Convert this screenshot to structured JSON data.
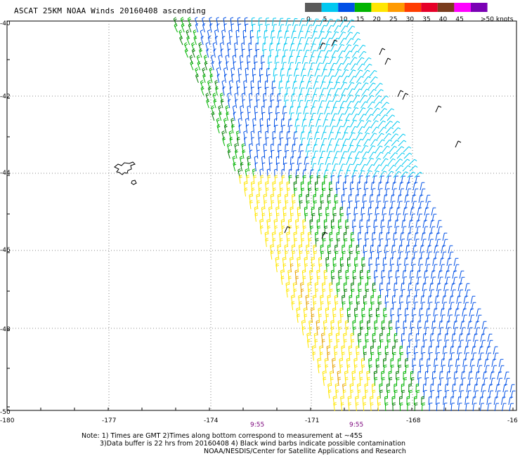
{
  "title": "ASCAT 25KM NOAA Winds 20160408 ascending",
  "legend": {
    "unit_label": ">50 knots",
    "bins": [
      {
        "label": "0",
        "color": "#5a5a5a"
      },
      {
        "label": "5",
        "color": "#00c8f0"
      },
      {
        "label": "10",
        "color": "#0050e6"
      },
      {
        "label": "15",
        "color": "#00b400"
      },
      {
        "label": "20",
        "color": "#ffe600"
      },
      {
        "label": "25",
        "color": "#ff9a00"
      },
      {
        "label": "30",
        "color": "#ff3c00"
      },
      {
        "label": "35",
        "color": "#e60028"
      },
      {
        "label": "40",
        "color": "#7a3c1e"
      },
      {
        "label": "45",
        "color": "#ff00ff"
      },
      {
        "label": "",
        "color": "#7a00b4"
      }
    ]
  },
  "axes": {
    "lon_labels": [
      "-180",
      "-177",
      "-174",
      "-171",
      "-168",
      "-16"
    ],
    "lat_labels": [
      "-40",
      "-42",
      "-44",
      "-46",
      "-48",
      "-50"
    ]
  },
  "time_labels": [
    "9:55",
    "9:55"
  ],
  "notes": {
    "line1": "Note: 1) Times are GMT  2)Times along bottom correspond to measurement at ~45S",
    "line2": "3)Data buffer is 22 hrs from 20160408  4) Black wind barbs indicate possible contamination",
    "line3": "NOAA/NESDIS/Center for Satellite Applications and Research"
  },
  "swath": {
    "wind_speed_knots_by_column": [
      16,
      14,
      13,
      12,
      11,
      9,
      7,
      5,
      5,
      5,
      5,
      5
    ],
    "southern_region_knots": [
      21,
      20,
      18,
      17,
      14,
      12,
      10
    ]
  }
}
